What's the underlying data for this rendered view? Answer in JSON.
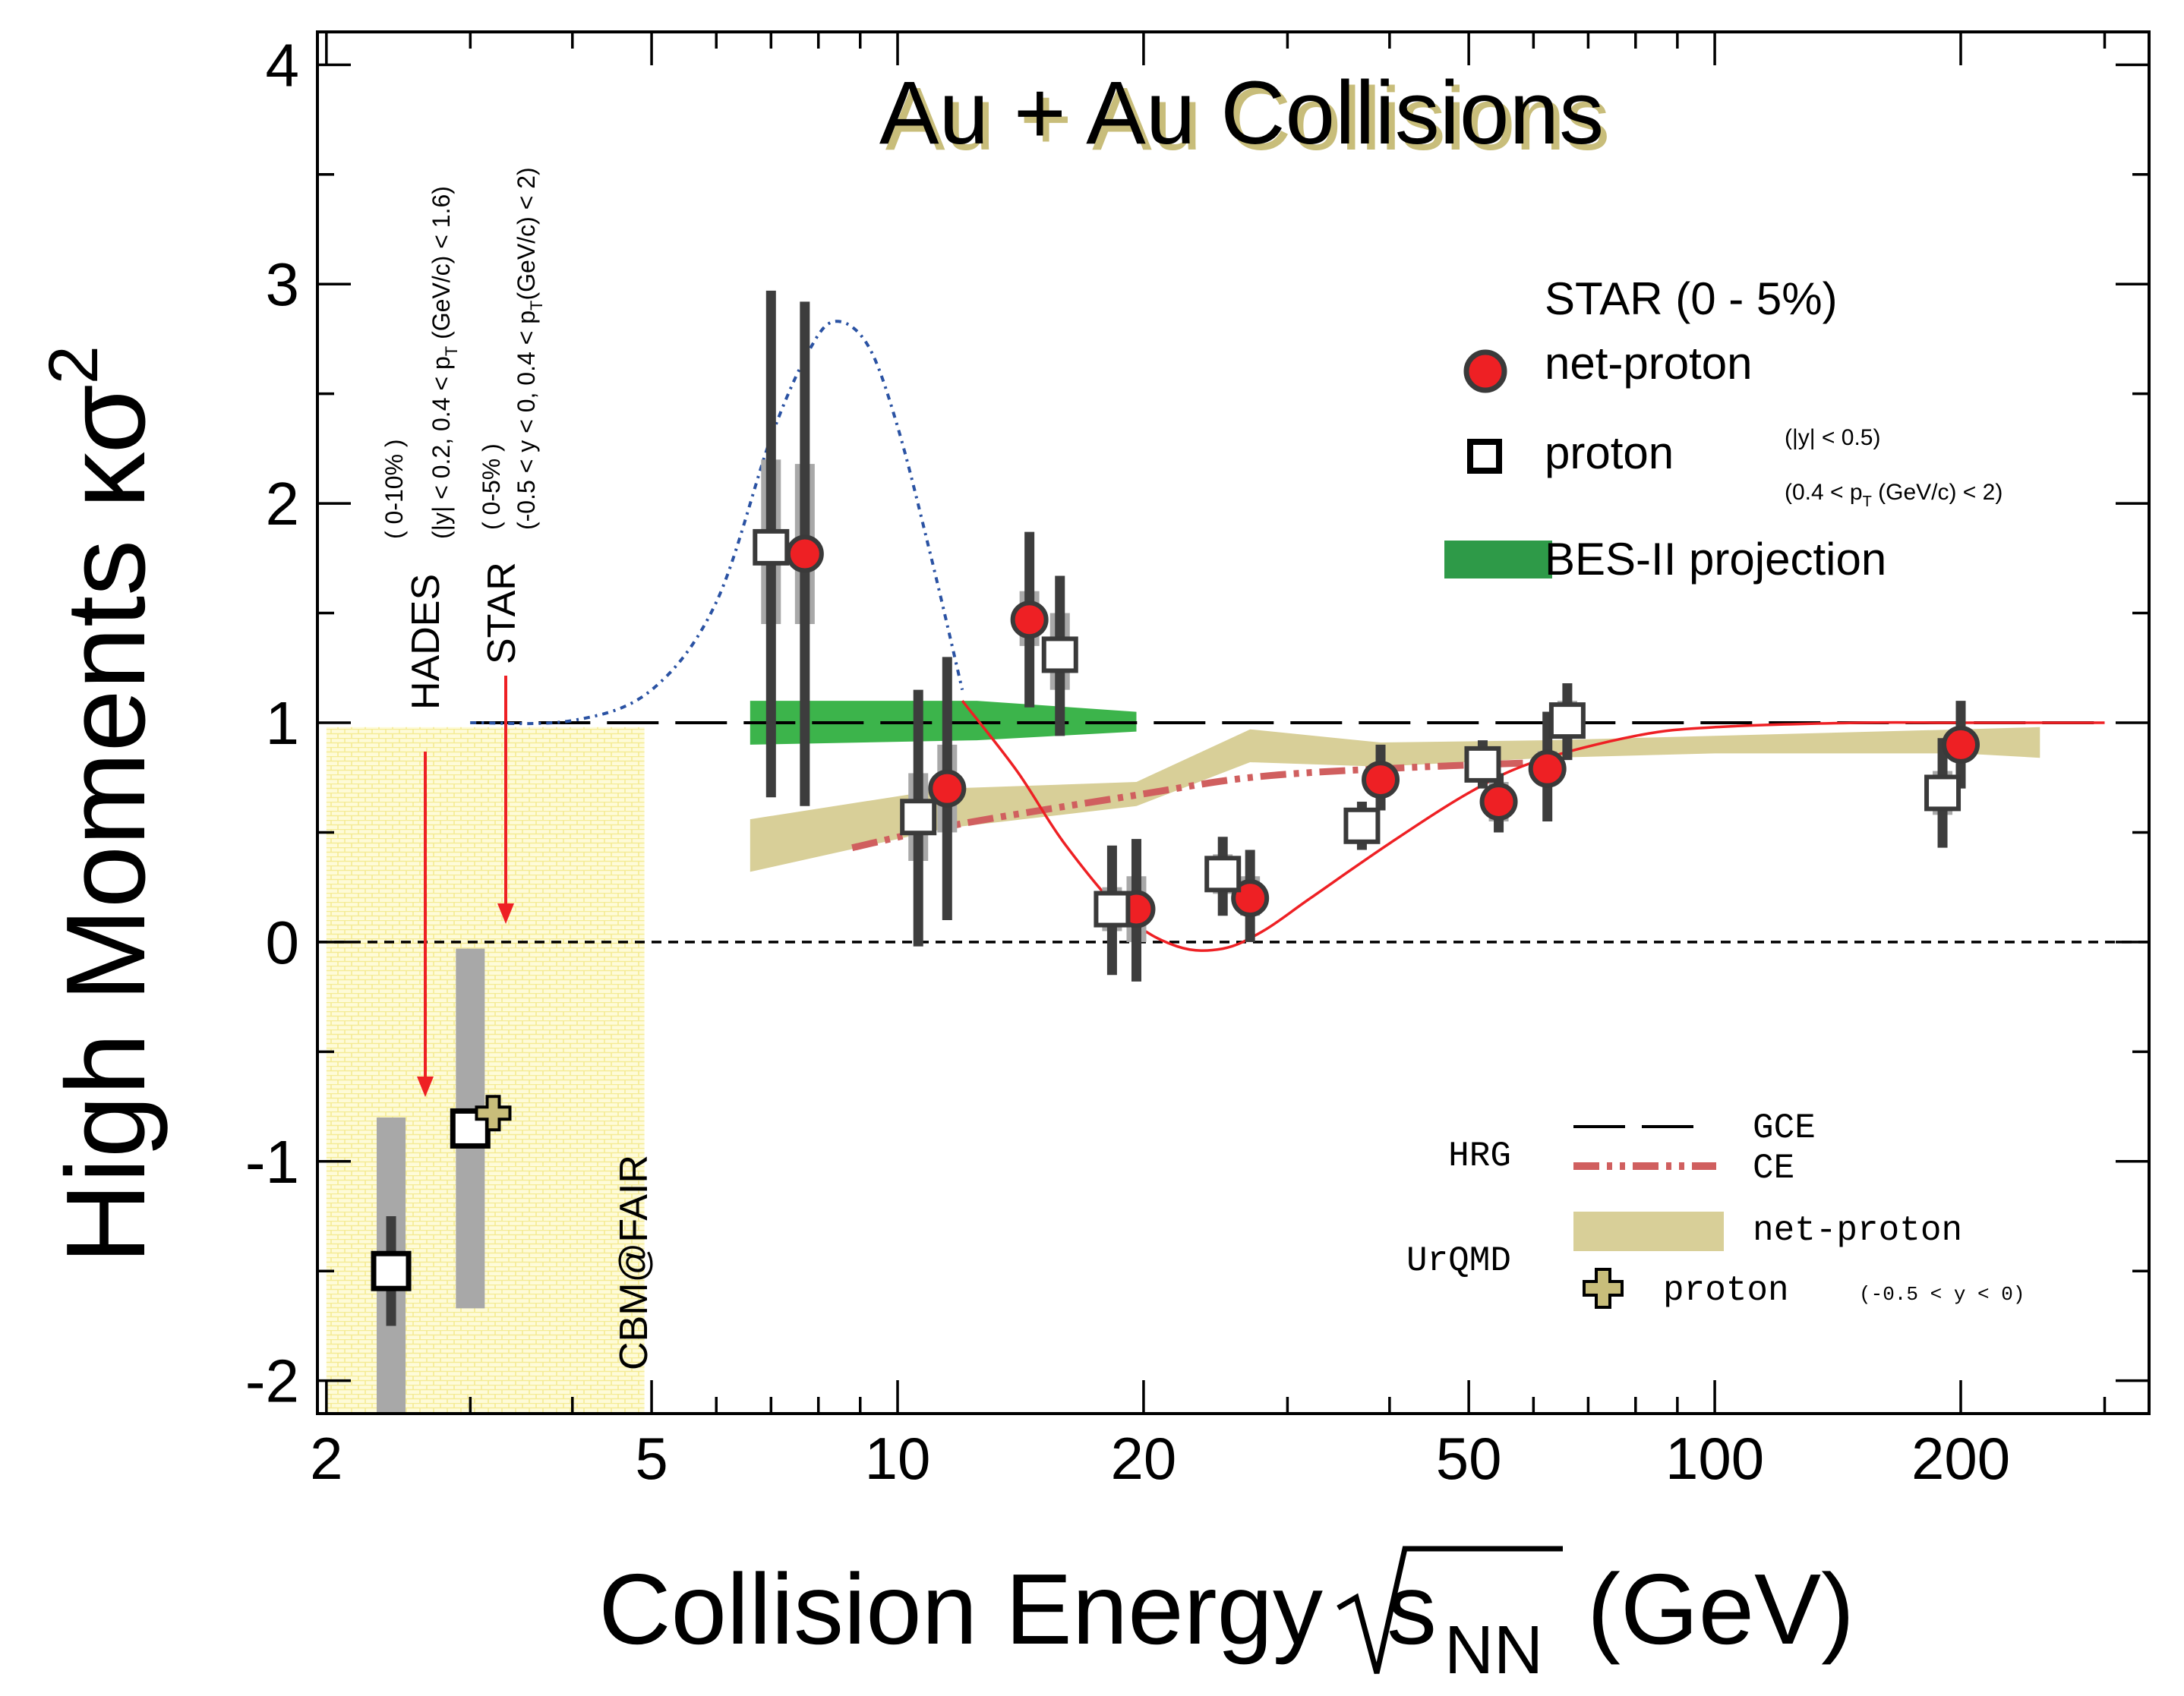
{
  "chart_data": {
    "type": "scatter",
    "title": "Au + Au Collisions",
    "ylabel": "High Moments κσ²",
    "ylabel_main": "High Moments κσ",
    "ylabel_sup": "2",
    "xlabel_main": "Collision Energy",
    "xlabel_s": "s",
    "xlabel_sub": "NN",
    "xlabel_unit": "(GeV)",
    "xscale": "log",
    "xlim": [
      1.95,
      340
    ],
    "ylim": [
      -2.15,
      4.15
    ],
    "x_ticks": [
      {
        "value": 2,
        "label": "2"
      },
      {
        "value": 5,
        "label": "5"
      },
      {
        "value": 10,
        "label": "10"
      },
      {
        "value": 20,
        "label": "20"
      },
      {
        "value": 50,
        "label": "50"
      },
      {
        "value": 100,
        "label": "100"
      },
      {
        "value": 200,
        "label": "200"
      }
    ],
    "y_ticks": [
      {
        "value": -2,
        "label": "-2"
      },
      {
        "value": -1,
        "label": "-1"
      },
      {
        "value": 0,
        "label": "0"
      },
      {
        "value": 1,
        "label": "1"
      },
      {
        "value": 2,
        "label": "2"
      },
      {
        "value": 3,
        "label": "3"
      },
      {
        "value": 4,
        "label": "4"
      }
    ],
    "series": [
      {
        "name": "net-proton",
        "marker": "circle",
        "color": "#ee2024",
        "points": [
          {
            "x": 7.7,
            "y": 1.77,
            "stat_lo": 0.62,
            "stat_hi": 2.92,
            "sys_lo": 1.45,
            "sys_hi": 2.18
          },
          {
            "x": 11.5,
            "y": 0.7,
            "stat_lo": 0.1,
            "stat_hi": 1.3,
            "sys_lo": 0.5,
            "sys_hi": 0.9
          },
          {
            "x": 14.5,
            "y": 1.47,
            "stat_lo": 1.07,
            "stat_hi": 1.87,
            "sys_lo": 1.35,
            "sys_hi": 1.6
          },
          {
            "x": 19.6,
            "y": 0.15,
            "stat_lo": -0.18,
            "stat_hi": 0.47,
            "sys_lo": 0.0,
            "sys_hi": 0.3
          },
          {
            "x": 27,
            "y": 0.2,
            "stat_lo": 0.0,
            "stat_hi": 0.42,
            "sys_lo": 0.12,
            "sys_hi": 0.3
          },
          {
            "x": 39,
            "y": 0.74,
            "stat_lo": 0.6,
            "stat_hi": 0.9,
            "sys_lo": 0.68,
            "sys_hi": 0.8
          },
          {
            "x": 54.4,
            "y": 0.64,
            "stat_lo": 0.5,
            "stat_hi": 0.77,
            "sys_lo": 0.55,
            "sys_hi": 0.73
          },
          {
            "x": 62.4,
            "y": 0.79,
            "stat_lo": 0.55,
            "stat_hi": 1.05,
            "sys_lo": 0.72,
            "sys_hi": 0.87
          },
          {
            "x": 200,
            "y": 0.9,
            "stat_lo": 0.7,
            "stat_hi": 1.1,
            "sys_lo": 0.83,
            "sys_hi": 0.97
          }
        ]
      },
      {
        "name": "proton",
        "marker": "open-square",
        "color": "#000000",
        "points": [
          {
            "x": 7.0,
            "y": 1.8,
            "stat_lo": 0.66,
            "stat_hi": 2.97,
            "sys_lo": 1.45,
            "sys_hi": 2.2
          },
          {
            "x": 10.6,
            "y": 0.57,
            "stat_lo": -0.02,
            "stat_hi": 1.15,
            "sys_lo": 0.37,
            "sys_hi": 0.77
          },
          {
            "x": 15.8,
            "y": 1.31,
            "stat_lo": 0.94,
            "stat_hi": 1.67,
            "sys_lo": 1.15,
            "sys_hi": 1.5
          },
          {
            "x": 18.3,
            "y": 0.15,
            "stat_lo": -0.15,
            "stat_hi": 0.44,
            "sys_lo": 0.05,
            "sys_hi": 0.25
          },
          {
            "x": 25,
            "y": 0.31,
            "stat_lo": 0.12,
            "stat_hi": 0.48,
            "sys_lo": 0.22,
            "sys_hi": 0.4
          },
          {
            "x": 37,
            "y": 0.53,
            "stat_lo": 0.42,
            "stat_hi": 0.64,
            "sys_lo": 0.47,
            "sys_hi": 0.59
          },
          {
            "x": 52,
            "y": 0.81,
            "stat_lo": 0.7,
            "stat_hi": 0.92,
            "sys_lo": 0.75,
            "sys_hi": 0.87
          },
          {
            "x": 66,
            "y": 1.01,
            "stat_lo": 0.83,
            "stat_hi": 1.18,
            "sys_lo": 0.93,
            "sys_hi": 1.1
          },
          {
            "x": 190,
            "y": 0.68,
            "stat_lo": 0.43,
            "stat_hi": 0.93,
            "sys_lo": 0.58,
            "sys_hi": 0.78
          }
        ]
      },
      {
        "name": "HADES / STAR proton (low energy)",
        "marker": "open-square-large",
        "color": "#000000",
        "points": [
          {
            "x": 2.4,
            "y": -1.5,
            "stat_lo": -1.75,
            "stat_hi": -1.25,
            "sys_lo": -2.15,
            "sys_hi": -0.8
          },
          {
            "x": 3.0,
            "y": -0.85,
            "stat_lo": -0.9,
            "stat_hi": -0.8,
            "sys_lo": -1.67,
            "sys_hi": -0.03
          }
        ]
      },
      {
        "name": "UrQMD proton",
        "marker": "plus",
        "color": "#c8bd7a",
        "points": [
          {
            "x": 3.2,
            "y": -0.78
          }
        ]
      }
    ],
    "bands": [
      {
        "name": "BES-II projection",
        "color": "#3cb44b",
        "x": [
          6.6,
          12.5,
          19.6
        ],
        "y_lo": [
          0.9,
          0.92,
          0.96
        ],
        "y_hi": [
          1.1,
          1.1,
          1.05
        ]
      },
      {
        "name": "UrQMD net-proton",
        "color": "#d8cf98",
        "x": [
          6.6,
          11.5,
          19.6,
          27,
          39,
          62.4,
          100,
          200,
          250
        ],
        "y_lo": [
          0.32,
          0.52,
          0.62,
          0.82,
          0.8,
          0.84,
          0.86,
          0.86,
          0.84
        ],
        "y_hi": [
          0.56,
          0.7,
          0.73,
          0.97,
          0.91,
          0.92,
          0.94,
          0.97,
          0.98
        ]
      }
    ],
    "lines": [
      {
        "name": "HRG GCE",
        "style": "long-dash",
        "color": "#000000",
        "x": [
          3.0,
          300
        ],
        "y": [
          1.0,
          1.0
        ]
      },
      {
        "name": "HRG CE",
        "style": "dash-dot-dot",
        "color": "#d05f5f",
        "x": [
          8.8,
          12,
          19.6,
          27,
          39,
          62.4
        ],
        "y": [
          0.43,
          0.54,
          0.67,
          0.75,
          0.79,
          0.82
        ]
      },
      {
        "name": "model fit (dotted)",
        "style": "dotted",
        "color": "#2a52a3",
        "x": [
          3.0,
          4.0,
          5.0,
          6.0,
          7.0,
          7.8,
          8.4,
          9.2,
          10.0,
          11.0,
          12.0
        ],
        "y": [
          1.0,
          1.01,
          1.15,
          1.55,
          2.3,
          2.7,
          2.83,
          2.72,
          2.35,
          1.75,
          1.15
        ]
      },
      {
        "name": "model fit (solid)",
        "style": "solid",
        "color": "#ee2024",
        "x": [
          12.0,
          14.0,
          16.0,
          19.0,
          22.0,
          25.0,
          28.0,
          32.0,
          40.0,
          50.0,
          60.0,
          80.0,
          100.0,
          150.0,
          200.0,
          300.0
        ],
        "y": [
          1.1,
          0.78,
          0.45,
          0.12,
          -0.02,
          -0.03,
          0.05,
          0.2,
          0.45,
          0.68,
          0.82,
          0.94,
          0.98,
          1.0,
          1.0,
          1.0
        ]
      }
    ],
    "zero_line": {
      "y": 0,
      "style": "short-dash"
    },
    "cbm_region": {
      "label": "CBM@FAIR",
      "x": [
        2.0,
        4.9
      ],
      "y": [
        -2.15,
        0.98
      ]
    },
    "annotations": {
      "hades_name": "HADES",
      "hades_cent": "( 0-10% )",
      "hades_cuts": "(|y| < 0.2, 0.4 < p",
      "hades_cuts_sub": "T",
      "hades_cuts_end": " (GeV/c) < 1.6)",
      "star_name": "STAR",
      "star_cent": "( 0-5% )",
      "star_cuts": "(-0.5 < y < 0, 0.4 < p",
      "star_cuts_sub": "T",
      "star_cuts_end": "(GeV/c) < 2)"
    },
    "legend": {
      "header": "STAR (0 - 5%)",
      "net_proton": "net-proton",
      "proton": "proton",
      "cut_y": "(|y| < 0.5)",
      "cut_pt_start": "(0.4 < p",
      "cut_pt_sub": "T",
      "cut_pt_end": " (GeV/c) < 2)",
      "bes2": "BES-II projection",
      "hrg": "HRG",
      "gce": "GCE",
      "ce": "CE",
      "urqmd": "UrQMD",
      "urqmd_netp": "net-proton",
      "urqmd_p": "proton",
      "urqmd_p_cut": "(-0.5 < y < 0)"
    }
  }
}
